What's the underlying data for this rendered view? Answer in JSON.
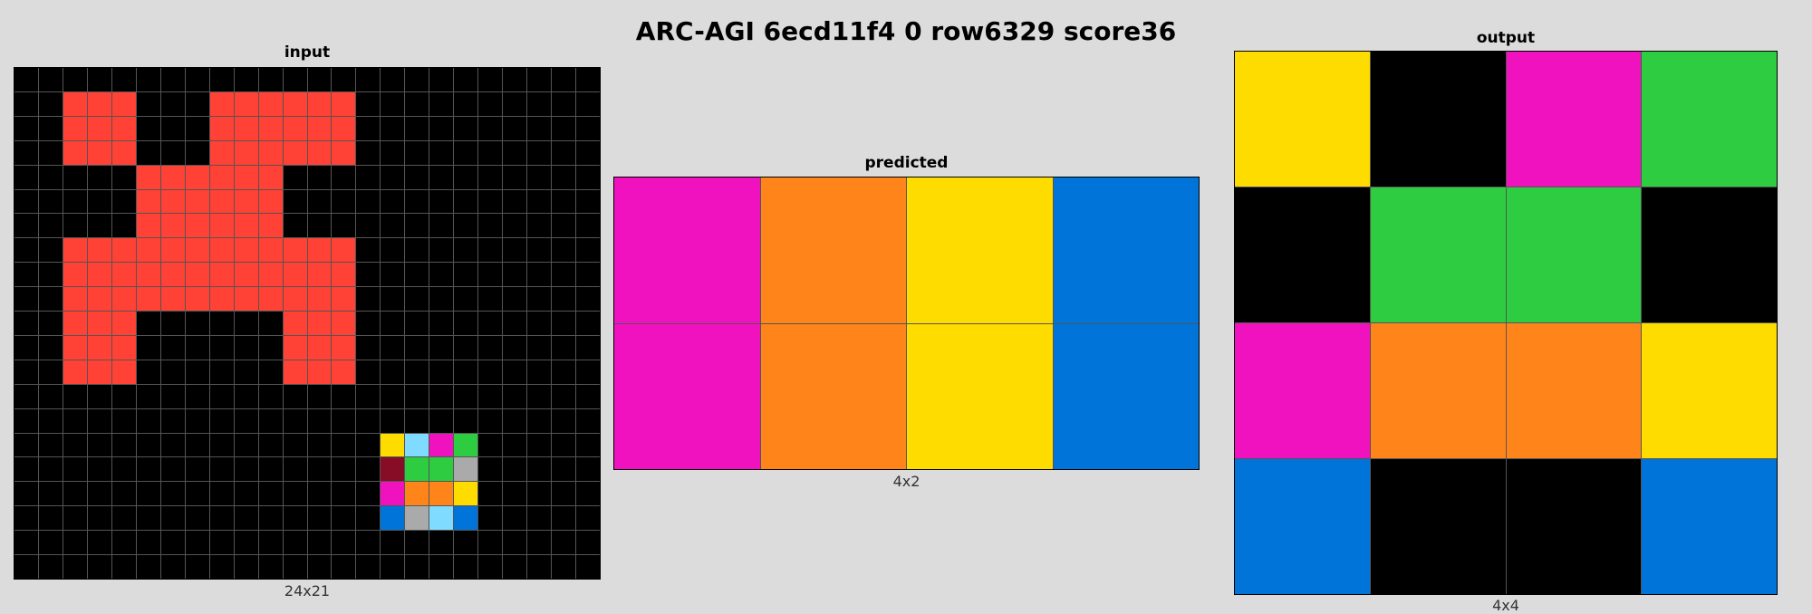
{
  "title": "ARC-AGI 6ecd11f4 0 row6329 score36",
  "palette": {
    "0": "#000000",
    "1": "#0074d9",
    "2": "#ff4136",
    "3": "#2ecc40",
    "4": "#ffdc00",
    "5": "#aaaaaa",
    "6": "#f012be",
    "7": "#ff851b",
    "8": "#7fdbff",
    "9": "#870c25"
  },
  "panels": {
    "input": {
      "title": "input",
      "dims": "24x21",
      "grid": [
        [
          0,
          0,
          0,
          0,
          0,
          0,
          0,
          0,
          0,
          0,
          0,
          0,
          0,
          0,
          0,
          0,
          0,
          0,
          0,
          0,
          0,
          0,
          0,
          0
        ],
        [
          0,
          0,
          2,
          2,
          2,
          0,
          0,
          0,
          2,
          2,
          2,
          2,
          2,
          2,
          0,
          0,
          0,
          0,
          0,
          0,
          0,
          0,
          0,
          0
        ],
        [
          0,
          0,
          2,
          2,
          2,
          0,
          0,
          0,
          2,
          2,
          2,
          2,
          2,
          2,
          0,
          0,
          0,
          0,
          0,
          0,
          0,
          0,
          0,
          0
        ],
        [
          0,
          0,
          2,
          2,
          2,
          0,
          0,
          0,
          2,
          2,
          2,
          2,
          2,
          2,
          0,
          0,
          0,
          0,
          0,
          0,
          0,
          0,
          0,
          0
        ],
        [
          0,
          0,
          0,
          0,
          0,
          2,
          2,
          2,
          2,
          2,
          2,
          0,
          0,
          0,
          0,
          0,
          0,
          0,
          0,
          0,
          0,
          0,
          0,
          0
        ],
        [
          0,
          0,
          0,
          0,
          0,
          2,
          2,
          2,
          2,
          2,
          2,
          0,
          0,
          0,
          0,
          0,
          0,
          0,
          0,
          0,
          0,
          0,
          0,
          0
        ],
        [
          0,
          0,
          0,
          0,
          0,
          2,
          2,
          2,
          2,
          2,
          2,
          0,
          0,
          0,
          0,
          0,
          0,
          0,
          0,
          0,
          0,
          0,
          0,
          0
        ],
        [
          0,
          0,
          2,
          2,
          2,
          2,
          2,
          2,
          2,
          2,
          2,
          2,
          2,
          2,
          0,
          0,
          0,
          0,
          0,
          0,
          0,
          0,
          0,
          0
        ],
        [
          0,
          0,
          2,
          2,
          2,
          2,
          2,
          2,
          2,
          2,
          2,
          2,
          2,
          2,
          0,
          0,
          0,
          0,
          0,
          0,
          0,
          0,
          0,
          0
        ],
        [
          0,
          0,
          2,
          2,
          2,
          2,
          2,
          2,
          2,
          2,
          2,
          2,
          2,
          2,
          0,
          0,
          0,
          0,
          0,
          0,
          0,
          0,
          0,
          0
        ],
        [
          0,
          0,
          2,
          2,
          2,
          0,
          0,
          0,
          0,
          0,
          0,
          2,
          2,
          2,
          0,
          0,
          0,
          0,
          0,
          0,
          0,
          0,
          0,
          0
        ],
        [
          0,
          0,
          2,
          2,
          2,
          0,
          0,
          0,
          0,
          0,
          0,
          2,
          2,
          2,
          0,
          0,
          0,
          0,
          0,
          0,
          0,
          0,
          0,
          0
        ],
        [
          0,
          0,
          2,
          2,
          2,
          0,
          0,
          0,
          0,
          0,
          0,
          2,
          2,
          2,
          0,
          0,
          0,
          0,
          0,
          0,
          0,
          0,
          0,
          0
        ],
        [
          0,
          0,
          0,
          0,
          0,
          0,
          0,
          0,
          0,
          0,
          0,
          0,
          0,
          0,
          0,
          0,
          0,
          0,
          0,
          0,
          0,
          0,
          0,
          0
        ],
        [
          0,
          0,
          0,
          0,
          0,
          0,
          0,
          0,
          0,
          0,
          0,
          0,
          0,
          0,
          0,
          0,
          0,
          0,
          0,
          0,
          0,
          0,
          0,
          0
        ],
        [
          0,
          0,
          0,
          0,
          0,
          0,
          0,
          0,
          0,
          0,
          0,
          0,
          0,
          0,
          0,
          4,
          8,
          6,
          3,
          0,
          0,
          0,
          0,
          0
        ],
        [
          0,
          0,
          0,
          0,
          0,
          0,
          0,
          0,
          0,
          0,
          0,
          0,
          0,
          0,
          0,
          9,
          3,
          3,
          5,
          0,
          0,
          0,
          0,
          0
        ],
        [
          0,
          0,
          0,
          0,
          0,
          0,
          0,
          0,
          0,
          0,
          0,
          0,
          0,
          0,
          0,
          6,
          7,
          7,
          4,
          0,
          0,
          0,
          0,
          0
        ],
        [
          0,
          0,
          0,
          0,
          0,
          0,
          0,
          0,
          0,
          0,
          0,
          0,
          0,
          0,
          0,
          1,
          5,
          8,
          1,
          0,
          0,
          0,
          0,
          0
        ],
        [
          0,
          0,
          0,
          0,
          0,
          0,
          0,
          0,
          0,
          0,
          0,
          0,
          0,
          0,
          0,
          0,
          0,
          0,
          0,
          0,
          0,
          0,
          0,
          0
        ],
        [
          0,
          0,
          0,
          0,
          0,
          0,
          0,
          0,
          0,
          0,
          0,
          0,
          0,
          0,
          0,
          0,
          0,
          0,
          0,
          0,
          0,
          0,
          0,
          0
        ]
      ]
    },
    "predicted": {
      "title": "predicted",
      "dims": "4x2",
      "grid": [
        [
          6,
          7,
          4,
          1
        ],
        [
          6,
          7,
          4,
          1
        ]
      ]
    },
    "output": {
      "title": "output",
      "dims": "4x4",
      "grid": [
        [
          4,
          0,
          6,
          3
        ],
        [
          0,
          3,
          3,
          0
        ],
        [
          6,
          7,
          7,
          4
        ],
        [
          1,
          0,
          0,
          1
        ]
      ]
    }
  }
}
